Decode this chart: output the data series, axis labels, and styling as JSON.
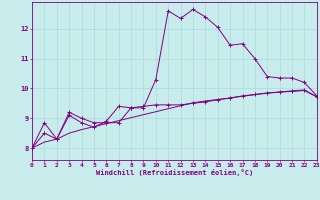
{
  "xlabel": "Windchill (Refroidissement éolien,°C)",
  "background_color": "#c8ecec",
  "line_color": "#800080",
  "xlim": [
    0,
    23
  ],
  "ylim": [
    7.6,
    12.9
  ],
  "yticks": [
    8,
    9,
    10,
    11,
    12
  ],
  "xticks": [
    0,
    1,
    2,
    3,
    4,
    5,
    6,
    7,
    8,
    9,
    10,
    11,
    12,
    13,
    14,
    15,
    16,
    17,
    18,
    19,
    20,
    21,
    22,
    23
  ],
  "series1_x": [
    0,
    1,
    2,
    3,
    4,
    5,
    6,
    7,
    8,
    9,
    10,
    11,
    12,
    13,
    14,
    15,
    16,
    17,
    18,
    19,
    20,
    21,
    22,
    23
  ],
  "series1_y": [
    8.0,
    8.85,
    8.3,
    9.2,
    9.0,
    8.85,
    8.85,
    8.85,
    9.35,
    9.35,
    10.3,
    12.6,
    12.35,
    12.65,
    12.4,
    12.05,
    11.45,
    11.5,
    11.0,
    10.4,
    10.35,
    10.35,
    10.2,
    9.75
  ],
  "series2_x": [
    0,
    1,
    2,
    3,
    4,
    5,
    6,
    7,
    8,
    9,
    10,
    11,
    12,
    13,
    14,
    15,
    16,
    17,
    18,
    19,
    20,
    21,
    22,
    23
  ],
  "series2_y": [
    8.0,
    8.5,
    8.3,
    9.1,
    8.85,
    8.7,
    8.9,
    9.4,
    9.35,
    9.4,
    9.45,
    9.45,
    9.45,
    9.5,
    9.55,
    9.62,
    9.68,
    9.75,
    9.8,
    9.85,
    9.88,
    9.92,
    9.95,
    9.72
  ],
  "series3_x": [
    0,
    1,
    2,
    3,
    4,
    5,
    6,
    7,
    8,
    9,
    10,
    11,
    12,
    13,
    14,
    15,
    16,
    17,
    18,
    19,
    20,
    21,
    22,
    23
  ],
  "series3_y": [
    8.0,
    8.2,
    8.3,
    8.5,
    8.62,
    8.72,
    8.82,
    8.92,
    9.02,
    9.12,
    9.22,
    9.32,
    9.42,
    9.52,
    9.58,
    9.63,
    9.68,
    9.74,
    9.79,
    9.84,
    9.88,
    9.9,
    9.93,
    9.72
  ]
}
